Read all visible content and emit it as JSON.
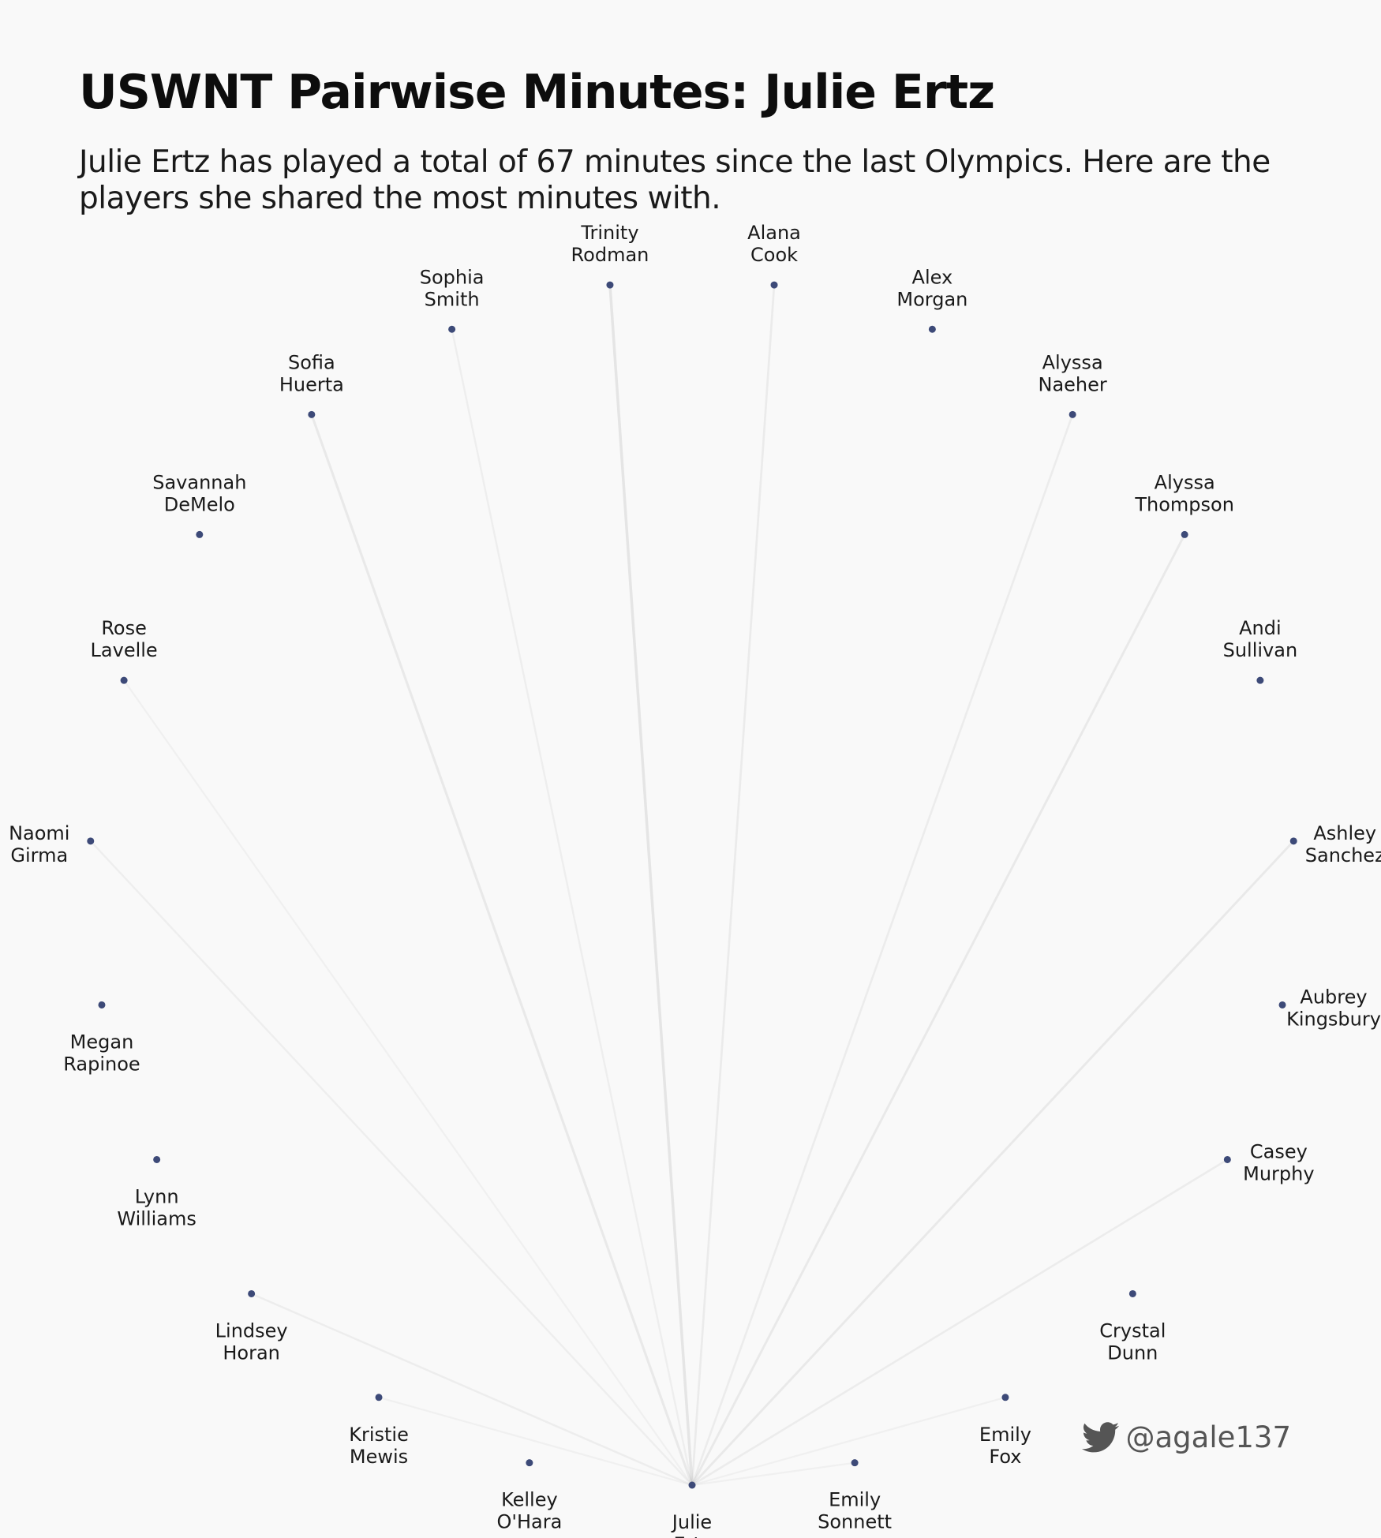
{
  "title": "USWNT Pairwise Minutes: Julie Ertz",
  "subtitle": "Julie Ertz has played a total of 67 minutes since the last Olympics. Here are the players she shared the most minutes with.",
  "credit": {
    "icon": "twitter-bird-icon",
    "handle": "@agale137"
  },
  "colors": {
    "node": "#3d4a78",
    "edge": "#8a8a8a",
    "background": "#f9f9f9"
  },
  "chart_data": {
    "type": "network",
    "focus_player": "Julie Ertz",
    "focus_total_minutes": 67,
    "layout": "circle",
    "players": [
      {
        "first": "Julie",
        "last": "Ertz",
        "label_side": "below",
        "shared_weight": 0
      },
      {
        "first": "Emily",
        "last": "Sonnett",
        "label_side": "below",
        "shared_weight": 0.1
      },
      {
        "first": "Emily",
        "last": "Fox",
        "label_side": "below",
        "shared_weight": 0.12
      },
      {
        "first": "Crystal",
        "last": "Dunn",
        "label_side": "below",
        "shared_weight": 0
      },
      {
        "first": "Casey",
        "last": "Murphy",
        "label_side": "right",
        "shared_weight": 0.3
      },
      {
        "first": "Aubrey",
        "last": "Kingsbury",
        "label_side": "right",
        "shared_weight": 0
      },
      {
        "first": "Ashley",
        "last": "Sanchez",
        "label_side": "right",
        "shared_weight": 0.45
      },
      {
        "first": "Andi",
        "last": "Sullivan",
        "label_side": "above",
        "shared_weight": 0
      },
      {
        "first": "Alyssa",
        "last": "Thompson",
        "label_side": "above",
        "shared_weight": 0.45
      },
      {
        "first": "Alyssa",
        "last": "Naeher",
        "label_side": "above",
        "shared_weight": 0.3
      },
      {
        "first": "Alex",
        "last": "Morgan",
        "label_side": "above",
        "shared_weight": 0
      },
      {
        "first": "Alana",
        "last": "Cook",
        "label_side": "above",
        "shared_weight": 0.35
      },
      {
        "first": "Trinity",
        "last": "Rodman",
        "label_side": "above",
        "shared_weight": 0.75
      },
      {
        "first": "Sophia",
        "last": "Smith",
        "label_side": "above",
        "shared_weight": 0.2
      },
      {
        "first": "Sofia",
        "last": "Huerta",
        "label_side": "above",
        "shared_weight": 0.55
      },
      {
        "first": "Savannah",
        "last": "DeMelo",
        "label_side": "above",
        "shared_weight": 0
      },
      {
        "first": "Rose",
        "last": "Lavelle",
        "label_side": "above",
        "shared_weight": 0.1
      },
      {
        "first": "Naomi",
        "last": "Girma",
        "label_side": "left",
        "shared_weight": 0.2
      },
      {
        "first": "Megan",
        "last": "Rapinoe",
        "label_side": "below",
        "shared_weight": 0
      },
      {
        "first": "Lynn",
        "last": "Williams",
        "label_side": "below",
        "shared_weight": 0
      },
      {
        "first": "Lindsey",
        "last": "Horan",
        "label_side": "below",
        "shared_weight": 0.25
      },
      {
        "first": "Kristie",
        "last": "Mewis",
        "label_side": "below",
        "shared_weight": 0.1
      },
      {
        "first": "Kelley",
        "last": "O'Hara",
        "label_side": "below",
        "shared_weight": 0
      }
    ]
  }
}
